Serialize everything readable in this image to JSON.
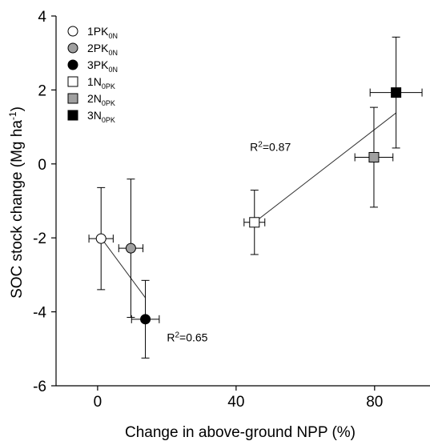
{
  "chart_data": {
    "type": "scatter",
    "xlabel": "Change in above-ground NPP (%)",
    "ylabel": "SOC stock change (Mg ha",
    "ylabel_sup": "-1",
    "ylabel_end": ")",
    "xlim": [
      -12,
      96
    ],
    "ylim": [
      -6,
      4
    ],
    "xticks": [
      0,
      40,
      80
    ],
    "yticks": [
      -6,
      -4,
      -2,
      0,
      2,
      4
    ],
    "grid": false,
    "legend_position": "top-left",
    "series": [
      {
        "name": "1PK",
        "sub": "0N",
        "marker": "circle",
        "fill": "#ffffff",
        "x": 1,
        "y": -2.02,
        "xerr": 3.5,
        "yerr": 1.38
      },
      {
        "name": "2PK",
        "sub": "0N",
        "marker": "circle",
        "fill": "#a0a0a0",
        "x": 9.6,
        "y": -2.28,
        "xerr": 3.5,
        "yerr": 1.87
      },
      {
        "name": "3PK",
        "sub": "0N",
        "marker": "circle",
        "fill": "#000000",
        "x": 13.8,
        "y": -4.2,
        "xerr": 4.0,
        "yerr": 1.05
      },
      {
        "name": "1N",
        "sub": "0PK",
        "marker": "square",
        "fill": "#ffffff",
        "x": 45.3,
        "y": -1.58,
        "xerr": 3.0,
        "yerr": 0.87
      },
      {
        "name": "2N",
        "sub": "0PK",
        "marker": "square",
        "fill": "#a0a0a0",
        "x": 79.8,
        "y": 0.18,
        "xerr": 5.5,
        "yerr": 1.35
      },
      {
        "name": "3N",
        "sub": "0PK",
        "marker": "square",
        "fill": "#000000",
        "x": 86.2,
        "y": 1.93,
        "xerr": 7.5,
        "yerr": 1.5
      }
    ],
    "fit_lines": [
      {
        "x": [
          1,
          13.8
        ],
        "y": [
          -2.0,
          -3.62
        ],
        "label_base": "R",
        "label_sup": "2",
        "label_rest": "=0.65",
        "label_at": [
          20,
          -4.8
        ]
      },
      {
        "x": [
          45.3,
          86.2
        ],
        "y": [
          -1.58,
          1.38
        ],
        "label_base": "R",
        "label_sup": "2",
        "label_rest": "=0.87",
        "label_at": [
          44,
          0.35
        ]
      }
    ]
  }
}
